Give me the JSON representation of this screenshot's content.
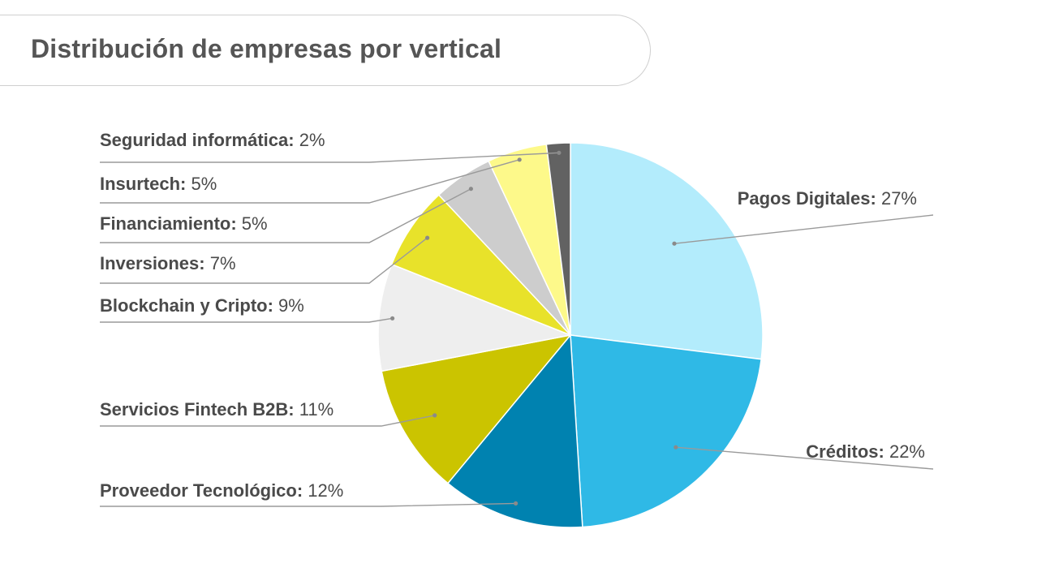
{
  "title": "Distribución de empresas por vertical",
  "chart_data": {
    "type": "pie",
    "slices": [
      {
        "label": "Pagos Digitales",
        "value": 27,
        "pct_text": "27%",
        "color": "#b3ecfc"
      },
      {
        "label": "Créditos",
        "value": 22,
        "pct_text": "22%",
        "color": "#2fb9e6"
      },
      {
        "label": "Proveedor Tecnológico",
        "value": 12,
        "pct_text": "12%",
        "color": "#0082b0"
      },
      {
        "label": "Servicios Fintech B2B",
        "value": 11,
        "pct_text": "11%",
        "color": "#cbc400"
      },
      {
        "label": "Blockchain y Cripto",
        "value": 9,
        "pct_text": "9%",
        "color": "#eeeeee"
      },
      {
        "label": "Inversiones",
        "value": 7,
        "pct_text": "7%",
        "color": "#e8e22a"
      },
      {
        "label": "Financiamiento",
        "value": 5,
        "pct_text": "5%",
        "color": "#cdcdcd"
      },
      {
        "label": "Insurtech",
        "value": 5,
        "pct_text": "5%",
        "color": "#fdf98a"
      },
      {
        "label": "Seguridad informática",
        "value": 2,
        "pct_text": "2%",
        "color": "#626262"
      }
    ]
  }
}
